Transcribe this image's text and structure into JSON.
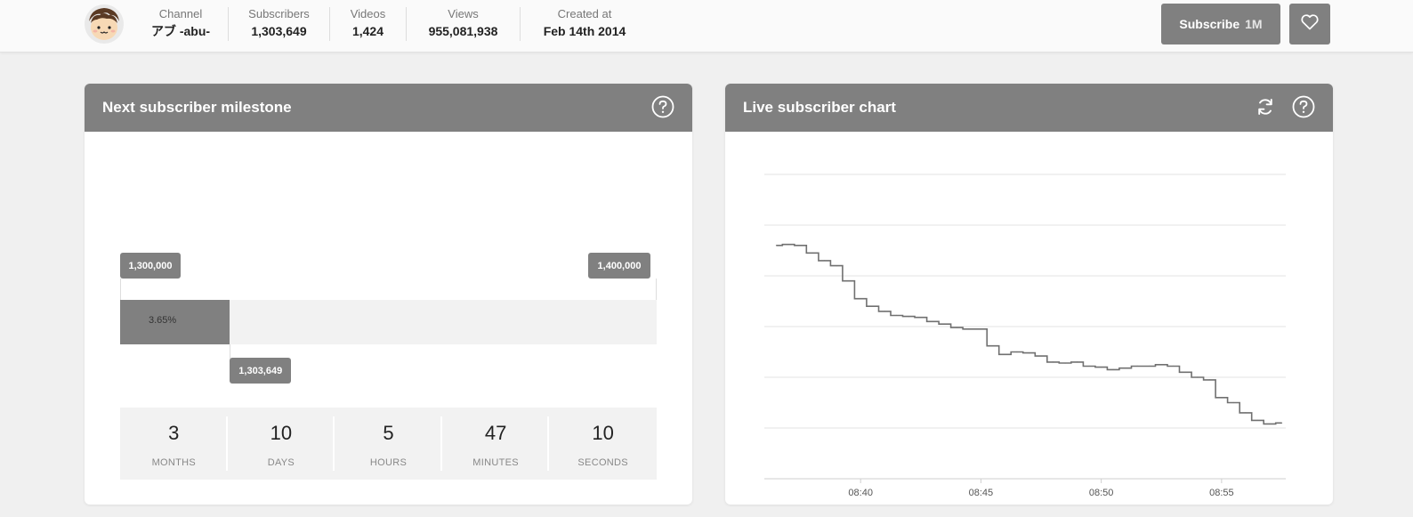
{
  "header": {
    "stats": [
      {
        "label": "Channel",
        "value": "アブ -abu-"
      },
      {
        "label": "Subscribers",
        "value": "1,303,649"
      },
      {
        "label": "Videos",
        "value": "1,424"
      },
      {
        "label": "Views",
        "value": "955,081,938"
      },
      {
        "label": "Created at",
        "value": "Feb 14th 2014"
      }
    ],
    "subscribe_label": "Subscribe",
    "subscribe_count": "1M"
  },
  "milestone": {
    "title": "Next subscriber milestone",
    "start_label": "1,300,000",
    "end_label": "1,400,000",
    "current_label": "1,303,649",
    "progress_text": "3.65%",
    "progress_fraction": 0.0365,
    "countdown": [
      {
        "value": "3",
        "unit": "MONTHS"
      },
      {
        "value": "10",
        "unit": "DAYS"
      },
      {
        "value": "5",
        "unit": "HOURS"
      },
      {
        "value": "47",
        "unit": "MINUTES"
      },
      {
        "value": "10",
        "unit": "SECONDS"
      }
    ]
  },
  "live_chart": {
    "title": "Live subscriber chart"
  },
  "colors": {
    "accent": "#808080",
    "line": "#707070"
  },
  "chart_data": {
    "type": "line",
    "title": "",
    "xlabel": "",
    "ylabel": "",
    "x_ticks": [
      "08:40",
      "08:45",
      "08:50",
      "08:55"
    ],
    "x": [
      "08:36:30",
      "08:37:00",
      "08:37:30",
      "08:38:00",
      "08:38:30",
      "08:39:00",
      "08:39:30",
      "08:40:00",
      "08:40:30",
      "08:41:00",
      "08:41:30",
      "08:42:00",
      "08:42:30",
      "08:43:00",
      "08:43:30",
      "08:44:00",
      "08:44:30",
      "08:45:00",
      "08:45:30",
      "08:46:00",
      "08:46:30",
      "08:47:00",
      "08:47:30",
      "08:48:00",
      "08:48:30",
      "08:49:00",
      "08:49:30",
      "08:50:00",
      "08:50:30",
      "08:51:00",
      "08:51:30",
      "08:52:00",
      "08:52:30",
      "08:53:00",
      "08:53:30",
      "08:54:00",
      "08:54:30",
      "08:55:00",
      "08:55:30",
      "08:56:00",
      "08:56:30",
      "08:57:00",
      "08:57:30"
    ],
    "values": [
      5.6,
      5.62,
      5.6,
      5.45,
      5.3,
      5.2,
      4.9,
      4.55,
      4.4,
      4.3,
      4.22,
      4.2,
      4.18,
      4.1,
      4.05,
      3.98,
      3.95,
      3.95,
      3.62,
      3.45,
      3.5,
      3.48,
      3.42,
      3.3,
      3.28,
      3.3,
      3.22,
      3.2,
      3.15,
      3.18,
      3.22,
      3.22,
      3.25,
      3.22,
      3.1,
      3.0,
      2.95,
      2.6,
      2.5,
      2.3,
      2.15,
      2.08,
      2.1
    ],
    "ylim": [
      1.0,
      7.0
    ],
    "grid": true,
    "legend": "none"
  }
}
